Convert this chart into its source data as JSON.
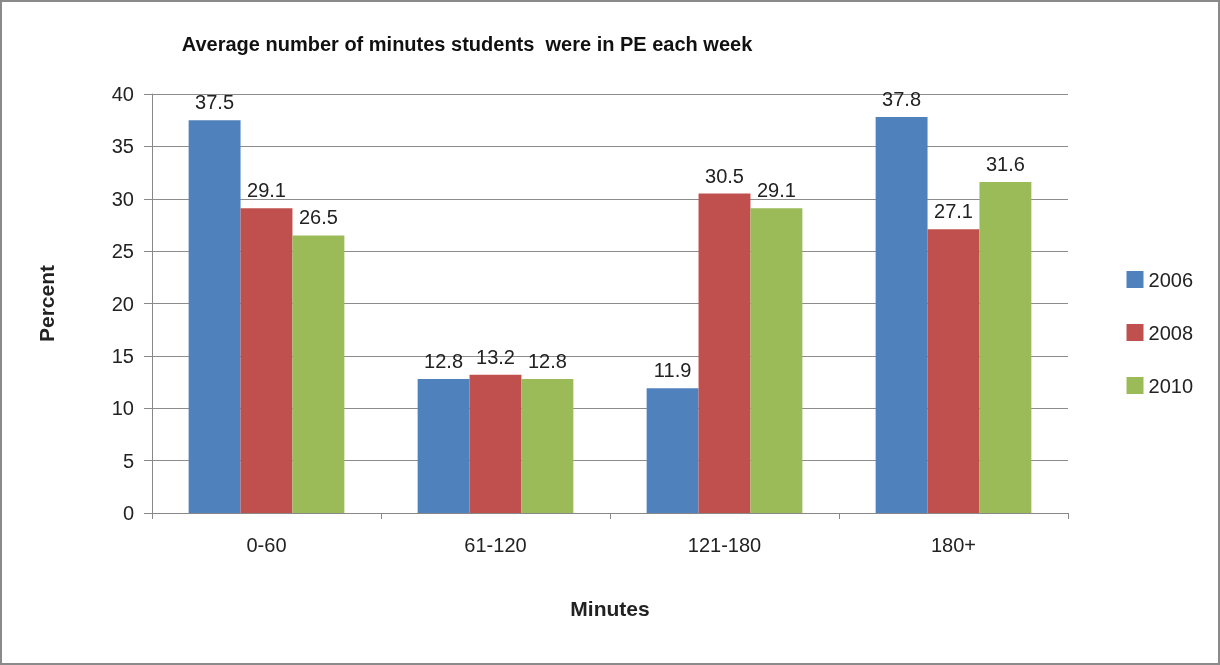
{
  "chart_data": {
    "type": "bar",
    "title": "Average number of minutes students  were in PE each week",
    "xlabel": "Minutes",
    "ylabel": "Percent",
    "categories": [
      "0-60",
      "61-120",
      "121-180",
      "180+"
    ],
    "series": [
      {
        "name": "2006",
        "color": "#4f81bd",
        "values": [
          37.5,
          12.8,
          11.9,
          37.8
        ]
      },
      {
        "name": "2008",
        "color": "#c0504d",
        "values": [
          29.1,
          13.2,
          30.5,
          27.1
        ]
      },
      {
        "name": "2010",
        "color": "#9bbb59",
        "values": [
          26.5,
          12.8,
          29.1,
          31.6
        ]
      }
    ],
    "ylim": [
      0,
      40
    ],
    "yticks": [
      0,
      5,
      10,
      15,
      20,
      25,
      30,
      35,
      40
    ],
    "grid": "y",
    "legend": "right",
    "data_labels": true
  }
}
